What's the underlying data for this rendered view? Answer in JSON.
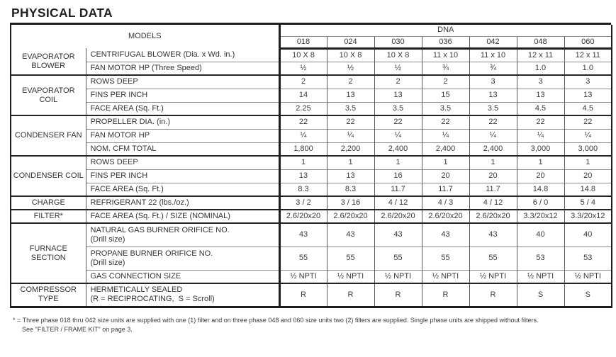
{
  "title": "PHYSICAL DATA",
  "table": {
    "models_label": "MODELS",
    "series_label": "DNA",
    "models": [
      "018",
      "024",
      "030",
      "036",
      "042",
      "048",
      "060"
    ],
    "groups": [
      {
        "category": "EVAPORATOR BLOWER",
        "rows": [
          {
            "label": "CENTRIFUGAL BLOWER (Dia. x Wd. in.)",
            "values": [
              "10 X 8",
              "10 X 8",
              "10 X 8",
              "11 x 10",
              "11 x 10",
              "12 x 11",
              "12 x 11"
            ]
          },
          {
            "label": "FAN MOTOR HP (Three Speed)",
            "values": [
              "½",
              "½",
              "½",
              "¾",
              "¾",
              "1.0",
              "1.0"
            ]
          }
        ]
      },
      {
        "category": "EVAPORATOR COIL",
        "rows": [
          {
            "label": "ROWS DEEP",
            "values": [
              "2",
              "2",
              "2",
              "2",
              "3",
              "3",
              "3"
            ]
          },
          {
            "label": "FINS PER INCH",
            "values": [
              "14",
              "13",
              "13",
              "15",
              "13",
              "13",
              "13"
            ]
          },
          {
            "label": "FACE AREA (Sq. Ft.)",
            "values": [
              "2.25",
              "3.5",
              "3.5",
              "3.5",
              "3.5",
              "4.5",
              "4.5"
            ]
          }
        ]
      },
      {
        "category": "CONDENSER FAN",
        "rows": [
          {
            "label": "PROPELLER DIA. (in.)",
            "values": [
              "22",
              "22",
              "22",
              "22",
              "22",
              "22",
              "22"
            ]
          },
          {
            "label": "FAN MOTOR HP",
            "values": [
              "¼",
              "¼",
              "¼",
              "¼",
              "¼",
              "¼",
              "¼"
            ]
          },
          {
            "label": "NOM. CFM TOTAL",
            "values": [
              "1,800",
              "2,200",
              "2,400",
              "2,400",
              "2,400",
              "3,000",
              "3,000"
            ]
          }
        ]
      },
      {
        "category": "CONDENSER COIL",
        "rows": [
          {
            "label": "ROWS DEEP",
            "values": [
              "1",
              "1",
              "1",
              "1",
              "1",
              "1",
              "1"
            ]
          },
          {
            "label": "FINS PER INCH",
            "values": [
              "13",
              "13",
              "16",
              "20",
              "20",
              "20",
              "20"
            ]
          },
          {
            "label": "FACE AREA (Sq. Ft.)",
            "values": [
              "8.3",
              "8.3",
              "11.7",
              "11.7",
              "11.7",
              "14.8",
              "14.8"
            ]
          }
        ]
      },
      {
        "category": "CHARGE",
        "rows": [
          {
            "label": "REFRIGERANT 22 (lbs./oz.)",
            "values": [
              "3 / 2",
              "3 / 16",
              "4 / 12",
              "4 / 3",
              "4 / 12",
              "6 / 0",
              "5 / 4"
            ]
          }
        ]
      },
      {
        "category": "FILTER*",
        "rows": [
          {
            "label": "FACE AREA (Sq. Ft.) / SIZE (NOMINAL)",
            "values": [
              "2.6/20x20",
              "2.6/20x20",
              "2.6/20x20",
              "2.6/20x20",
              "2.6/20x20",
              "3.3/20x12",
              "3.3/20x12"
            ]
          }
        ]
      },
      {
        "category": "FURNACE SECTION",
        "rows": [
          {
            "label": "NATURAL GAS BURNER ORIFICE NO.",
            "sub": "(Drill size)",
            "values": [
              "43",
              "43",
              "43",
              "43",
              "43",
              "40",
              "40"
            ]
          },
          {
            "label": "PROPANE BURNER ORIFICE NO.",
            "sub": "(Drill size)",
            "values": [
              "55",
              "55",
              "55",
              "55",
              "55",
              "53",
              "53"
            ]
          },
          {
            "label": "GAS CONNECTION SIZE",
            "values": [
              "½ NPTI",
              "½ NPTI",
              "½ NPTI",
              "½ NPTI",
              "½ NPTI",
              "½ NPTI",
              "½ NPTI"
            ]
          }
        ]
      },
      {
        "category": "COMPRESSOR TYPE",
        "rows": [
          {
            "label": "HERMETICALLY SEALED",
            "sub": "(R = RECIPROCATING,  S = Scroll)",
            "values": [
              "R",
              "R",
              "R",
              "R",
              "R",
              "S",
              "S"
            ]
          }
        ]
      }
    ]
  },
  "footnote": {
    "line1": "* = Three phase 018 thru 042 size units are supplied with one (1) filter and on three phase 048 and 060 size units two (2) filters are supplied. Single phase units are shipped without filters.",
    "line2": "See \"FILTER / FRAME KIT\" on page 3."
  }
}
